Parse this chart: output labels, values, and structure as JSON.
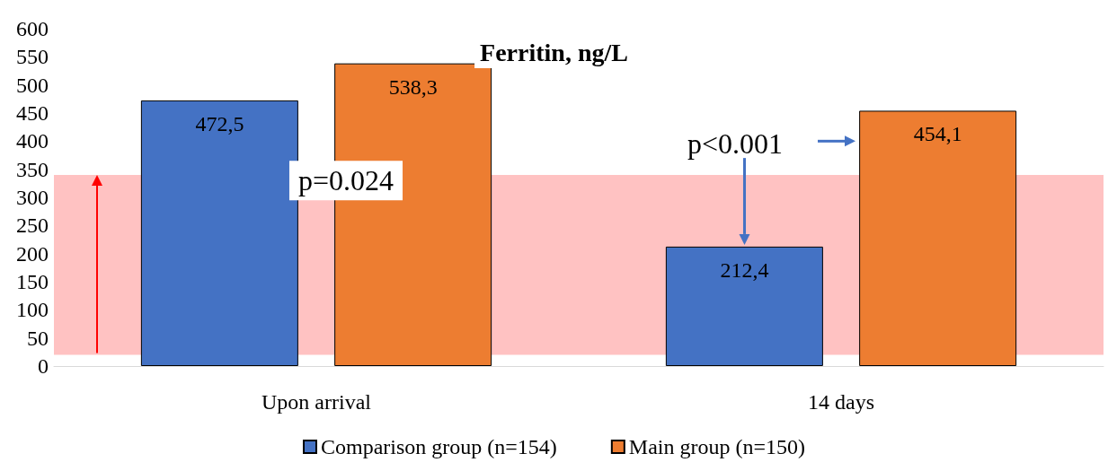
{
  "chart_data": {
    "type": "bar",
    "title": "Ferritin, ng/L",
    "categories": [
      "Upon arrival",
      "14 days"
    ],
    "series": [
      {
        "name": "Comparison group (n=154)",
        "color": "#4472c4",
        "values": [
          472.5,
          212.4
        ],
        "value_labels": [
          "472,5",
          "212,4"
        ]
      },
      {
        "name": "Main group (n=150)",
        "color": "#ed7d31",
        "values": [
          538.3,
          454.1
        ],
        "value_labels": [
          "538,3",
          "454,1"
        ]
      }
    ],
    "ylim": [
      0,
      600
    ],
    "yticks": [
      0,
      50,
      100,
      150,
      200,
      250,
      300,
      350,
      400,
      450,
      500,
      550,
      600
    ],
    "grid": false,
    "legend": "bottom",
    "bands": [
      {
        "axis": "y",
        "from": 20,
        "to": 340,
        "color": "#ff9999"
      }
    ],
    "annotations": [
      "p=0.024",
      "p<0.001"
    ]
  }
}
